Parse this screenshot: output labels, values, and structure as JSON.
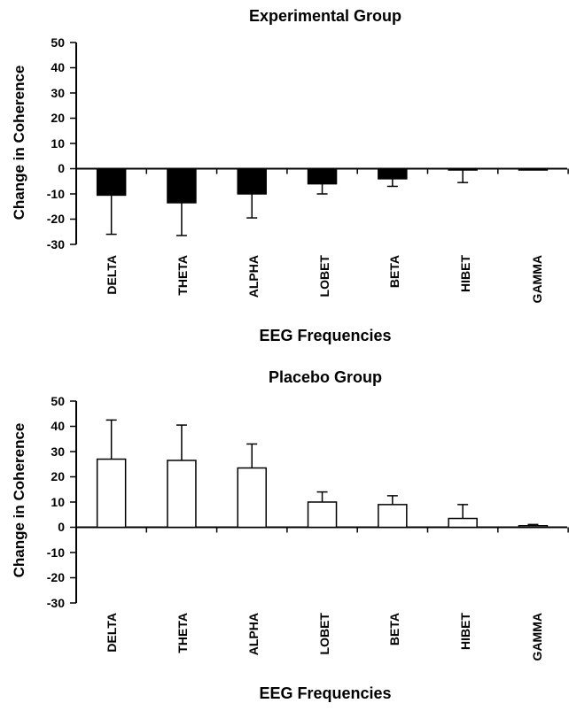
{
  "chart_data": [
    {
      "type": "bar",
      "title": "Experimental Group",
      "xlabel": "EEG Frequencies",
      "ylabel": "Change in Coherence",
      "ylim": [
        -30,
        50
      ],
      "yticks": [
        "50",
        "40",
        "30",
        "20",
        "10",
        "0",
        "-10",
        "-20",
        "-30"
      ],
      "categories": [
        "DELTA",
        "THETA",
        "ALPHA",
        "LOBET",
        "BETA",
        "HIBET",
        "GAMMA"
      ],
      "values": [
        -10.5,
        -13.5,
        -10,
        -6,
        -4,
        -0.5,
        -0.3
      ],
      "error": [
        15.5,
        13,
        9.5,
        4,
        3,
        5,
        0
      ],
      "bar_color": "#000000",
      "grid": false
    },
    {
      "type": "bar",
      "title": "Placebo Group",
      "xlabel": "EEG Frequencies",
      "ylabel": "Change in Coherence",
      "ylim": [
        -30,
        50
      ],
      "yticks": [
        "50",
        "40",
        "30",
        "20",
        "10",
        "0",
        "-10",
        "-20",
        "-30"
      ],
      "categories": [
        "DELTA",
        "THETA",
        "ALPHA",
        "LOBET",
        "BETA",
        "HIBET",
        "GAMMA"
      ],
      "values": [
        27,
        26.5,
        23.5,
        10,
        9,
        3.5,
        0.6
      ],
      "error": [
        15.5,
        14,
        9.5,
        4,
        3.5,
        5.5,
        0.5
      ],
      "bar_color": "#ffffff",
      "grid": false
    }
  ]
}
